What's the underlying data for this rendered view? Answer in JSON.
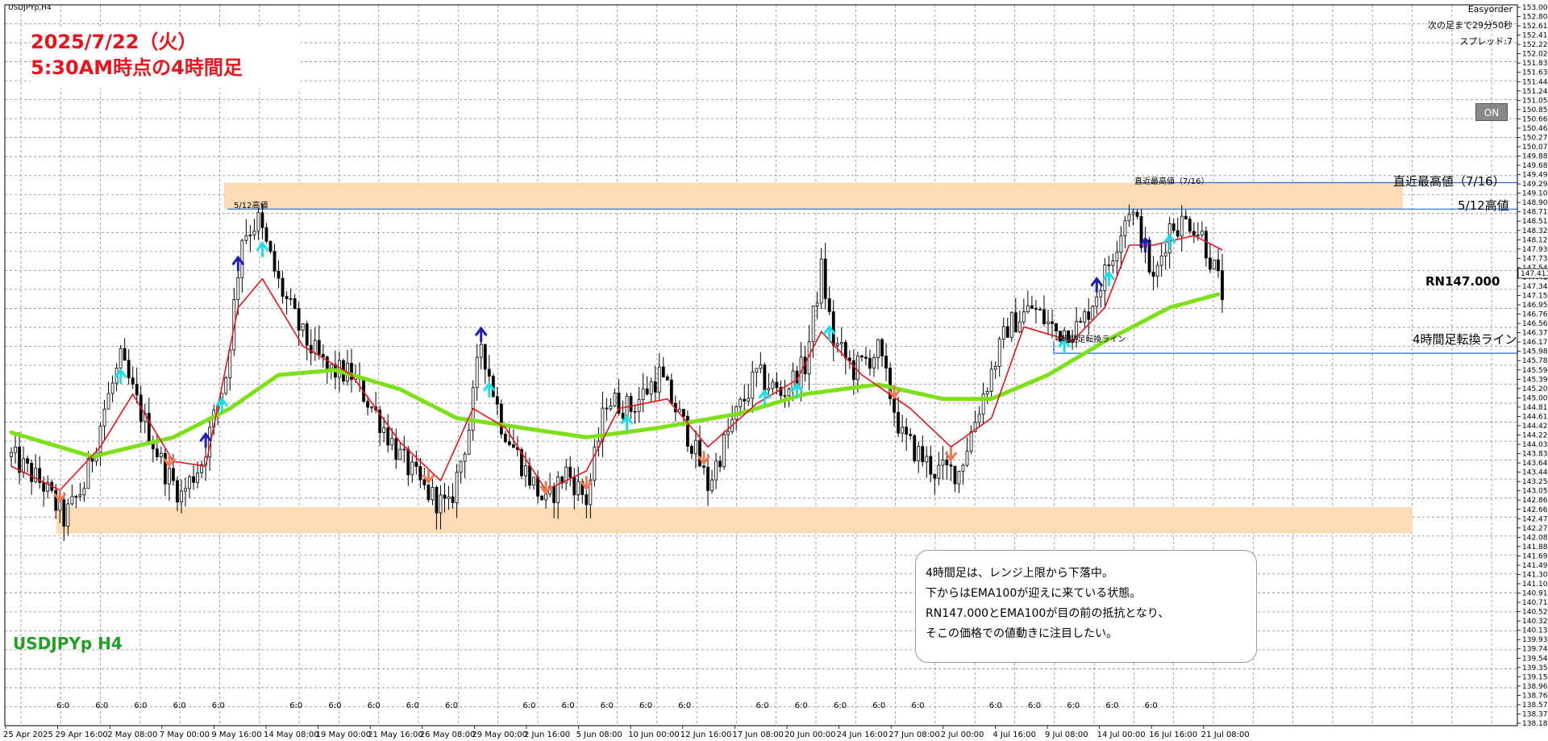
{
  "window": {
    "symbol_label": "USDJPYp,H4"
  },
  "header_info": {
    "easyorder_label": "Easyorder",
    "next_bar": "次の足まで29分50秒",
    "spread": "スプレッド:7"
  },
  "title": {
    "line1": "2025/7/22（火）",
    "line2": "5:30AM時点の4時間足"
  },
  "chart_label": "USDJPYp H4",
  "on_button": "ON",
  "comment": [
    "4時間足は、レンジ上限から下落中。",
    "下からはEMA100が迎えに来ている状態。",
    "RN147.000とEMA100が目の前の抵抗となり、",
    "そこの価格での値動きに注目したい。"
  ],
  "levels": {
    "recent_high_small": "直近最高値（7/16）",
    "recent_high_large": "直近最高値（7/16）",
    "may12_small": "5/12高値",
    "may12_large": "5/12高値",
    "rn": "RN147.000",
    "switch_small": "4時間足転換ライン",
    "switch_large": "4時間足転換ライン"
  },
  "colors": {
    "candle": "#000000",
    "ema_fast": "#e8141e",
    "ema100": "#7ee01a",
    "zone": "#fcdcb4",
    "level_line": "#1e6fd9",
    "arrow_up_dark": "#1c20b4",
    "arrow_up_light": "#19e0e6",
    "arrow_down": "#f07850",
    "title_text": "#e8141e",
    "label_green": "#22a022"
  },
  "chart_data": {
    "type": "candlestick",
    "symbol": "USDJPYp",
    "timeframe": "H4",
    "ylim": [
      138.0,
      153.0
    ],
    "y_ticks": [
      "153.000",
      "152.805",
      "152.610",
      "152.415",
      "152.220",
      "152.025",
      "151.830",
      "151.635",
      "151.440",
      "151.245",
      "151.050",
      "150.855",
      "150.660",
      "150.465",
      "150.270",
      "150.075",
      "149.880",
      "149.685",
      "149.490",
      "149.295",
      "149.100",
      "148.905",
      "148.710",
      "148.515",
      "148.320",
      "148.125",
      "147.930",
      "147.735",
      "147.540",
      "147.411",
      "147.345",
      "147.150",
      "146.955",
      "146.760",
      "146.565",
      "146.370",
      "146.175",
      "145.980",
      "145.785",
      "145.590",
      "145.395",
      "145.200",
      "145.005",
      "144.810",
      "144.615",
      "144.420",
      "144.225",
      "144.030",
      "143.835",
      "143.640",
      "143.445",
      "143.250",
      "143.055",
      "142.860",
      "142.665",
      "142.470",
      "142.275",
      "142.080",
      "141.885",
      "141.690",
      "141.495",
      "141.300",
      "141.105",
      "140.910",
      "140.715",
      "140.520",
      "140.325",
      "140.130",
      "139.935",
      "139.740",
      "139.545",
      "139.350",
      "139.155",
      "138.960",
      "138.765",
      "138.570",
      "138.375",
      "138.180"
    ],
    "current_price": "147.411",
    "x_date_labels": [
      "25 Apr 2025",
      "29 Apr 16:00",
      "2 May 08:00",
      "7 May 00:00",
      "9 May 16:00",
      "14 May 08:00",
      "19 May 00:00",
      "21 May 16:00",
      "26 May 08:00",
      "29 May 00:00",
      "2 Jun 16:00",
      "5 Jun 08:00",
      "10 Jun 00:00",
      "12 Jun 16:00",
      "17 Jun 08:00",
      "20 Jun 00:00",
      "24 Jun 16:00",
      "27 Jun 08:00",
      "2 Jul 00:00",
      "4 Jul 16:00",
      "9 Jul 08:00",
      "14 Jul 00:00",
      "16 Jul 16:00",
      "21 Jul 08:00"
    ],
    "x_time_labels": [
      "6:0",
      "6:0",
      "6:0",
      "6:0",
      "6:0",
      "6:0",
      "6:0",
      "6:0",
      "6:0",
      "6:0",
      "6:0",
      "6:0",
      "6:0",
      "6:0",
      "6:0",
      "6:0",
      "6:0",
      "6:0",
      "6:0",
      "6:0",
      "6:0",
      "6:0",
      "6:0",
      "6:0",
      "6:0",
      "6:0",
      "6:0",
      "6:0",
      "6:0",
      "6:0"
    ],
    "zones": [
      {
        "name": "range-upper",
        "from": 148.75,
        "to": 149.3
      },
      {
        "name": "range-lower",
        "from": 142.0,
        "to": 142.55
      }
    ],
    "levels": [
      {
        "name": "recent-high",
        "price": 149.3
      },
      {
        "name": "may12-high",
        "price": 148.75
      },
      {
        "name": "switch-line",
        "price": 145.75
      }
    ],
    "price_path": [
      [
        0,
        143.6
      ],
      [
        8,
        143.0
      ],
      [
        13,
        142.3
      ],
      [
        18,
        143.0
      ],
      [
        23,
        144.6
      ],
      [
        27,
        145.6
      ],
      [
        32,
        144.5
      ],
      [
        38,
        143.3
      ],
      [
        42,
        142.8
      ],
      [
        47,
        143.5
      ],
      [
        53,
        145.3
      ],
      [
        57,
        148.2
      ],
      [
        61,
        148.5
      ],
      [
        66,
        147.2
      ],
      [
        72,
        146.1
      ],
      [
        78,
        145.4
      ],
      [
        84,
        145.3
      ],
      [
        90,
        144.5
      ],
      [
        96,
        143.6
      ],
      [
        102,
        142.9
      ],
      [
        108,
        142.5
      ],
      [
        113,
        144.2
      ],
      [
        116,
        146.0
      ],
      [
        121,
        144.3
      ],
      [
        127,
        143.3
      ],
      [
        132,
        142.6
      ],
      [
        137,
        143.3
      ],
      [
        142,
        142.7
      ],
      [
        147,
        144.8
      ],
      [
        153,
        144.6
      ],
      [
        160,
        145.3
      ],
      [
        168,
        143.9
      ],
      [
        172,
        143.0
      ],
      [
        178,
        144.3
      ],
      [
        184,
        145.3
      ],
      [
        190,
        144.9
      ],
      [
        196,
        145.5
      ],
      [
        200,
        147.5
      ],
      [
        203,
        146.0
      ],
      [
        208,
        145.4
      ],
      [
        214,
        145.8
      ],
      [
        220,
        144.0
      ],
      [
        228,
        143.3
      ],
      [
        234,
        143.3
      ],
      [
        240,
        144.9
      ],
      [
        246,
        146.3
      ],
      [
        252,
        146.7
      ],
      [
        258,
        146.2
      ],
      [
        264,
        146.3
      ],
      [
        270,
        147.4
      ],
      [
        276,
        148.8
      ],
      [
        279,
        148.2
      ],
      [
        282,
        147.2
      ],
      [
        286,
        148.4
      ],
      [
        291,
        148.5
      ],
      [
        294,
        148.2
      ],
      [
        297,
        147.5
      ],
      [
        299,
        147.0
      ]
    ],
    "ema_fast": [
      [
        0,
        143.4
      ],
      [
        12,
        142.9
      ],
      [
        22,
        143.8
      ],
      [
        30,
        144.9
      ],
      [
        40,
        143.5
      ],
      [
        48,
        143.4
      ],
      [
        56,
        146.7
      ],
      [
        62,
        147.3
      ],
      [
        72,
        145.9
      ],
      [
        84,
        145.3
      ],
      [
        96,
        143.9
      ],
      [
        106,
        143.1
      ],
      [
        114,
        144.6
      ],
      [
        122,
        144.2
      ],
      [
        132,
        142.9
      ],
      [
        142,
        143.3
      ],
      [
        150,
        144.6
      ],
      [
        162,
        144.8
      ],
      [
        172,
        143.8
      ],
      [
        184,
        144.7
      ],
      [
        194,
        145.2
      ],
      [
        200,
        146.2
      ],
      [
        210,
        145.3
      ],
      [
        222,
        144.6
      ],
      [
        232,
        143.8
      ],
      [
        242,
        144.4
      ],
      [
        250,
        146.3
      ],
      [
        262,
        146.0
      ],
      [
        270,
        146.7
      ],
      [
        276,
        148.0
      ],
      [
        282,
        148.0
      ],
      [
        292,
        148.2
      ],
      [
        299,
        147.9
      ]
    ],
    "ema100": [
      [
        0,
        144.1
      ],
      [
        20,
        143.6
      ],
      [
        40,
        144.0
      ],
      [
        54,
        144.6
      ],
      [
        66,
        145.3
      ],
      [
        80,
        145.4
      ],
      [
        96,
        145.0
      ],
      [
        110,
        144.4
      ],
      [
        126,
        144.2
      ],
      [
        142,
        144.0
      ],
      [
        160,
        144.2
      ],
      [
        180,
        144.5
      ],
      [
        196,
        144.9
      ],
      [
        214,
        145.1
      ],
      [
        230,
        144.8
      ],
      [
        242,
        144.8
      ],
      [
        256,
        145.3
      ],
      [
        270,
        146.0
      ],
      [
        286,
        146.7
      ],
      [
        299,
        147.0
      ]
    ],
    "signals": [
      {
        "i": 12,
        "dir": "down"
      },
      {
        "i": 27,
        "dir": "up-light"
      },
      {
        "i": 39,
        "dir": "down"
      },
      {
        "i": 48,
        "dir": "up-dark"
      },
      {
        "i": 52,
        "dir": "up-light"
      },
      {
        "i": 56,
        "dir": "up-dark"
      },
      {
        "i": 62,
        "dir": "up-light"
      },
      {
        "i": 103,
        "dir": "down"
      },
      {
        "i": 132,
        "dir": "down"
      },
      {
        "i": 142,
        "dir": "down"
      },
      {
        "i": 116,
        "dir": "up-dark"
      },
      {
        "i": 118,
        "dir": "up-light"
      },
      {
        "i": 152,
        "dir": "up-light"
      },
      {
        "i": 171,
        "dir": "down"
      },
      {
        "i": 186,
        "dir": "up-light"
      },
      {
        "i": 194,
        "dir": "up-light"
      },
      {
        "i": 202,
        "dir": "up-light"
      },
      {
        "i": 218,
        "dir": "down"
      },
      {
        "i": 232,
        "dir": "down"
      },
      {
        "i": 260,
        "dir": "up-light"
      },
      {
        "i": 268,
        "dir": "up-dark"
      },
      {
        "i": 271,
        "dir": "up-light"
      },
      {
        "i": 280,
        "dir": "up-dark"
      },
      {
        "i": 286,
        "dir": "up-light"
      }
    ]
  }
}
